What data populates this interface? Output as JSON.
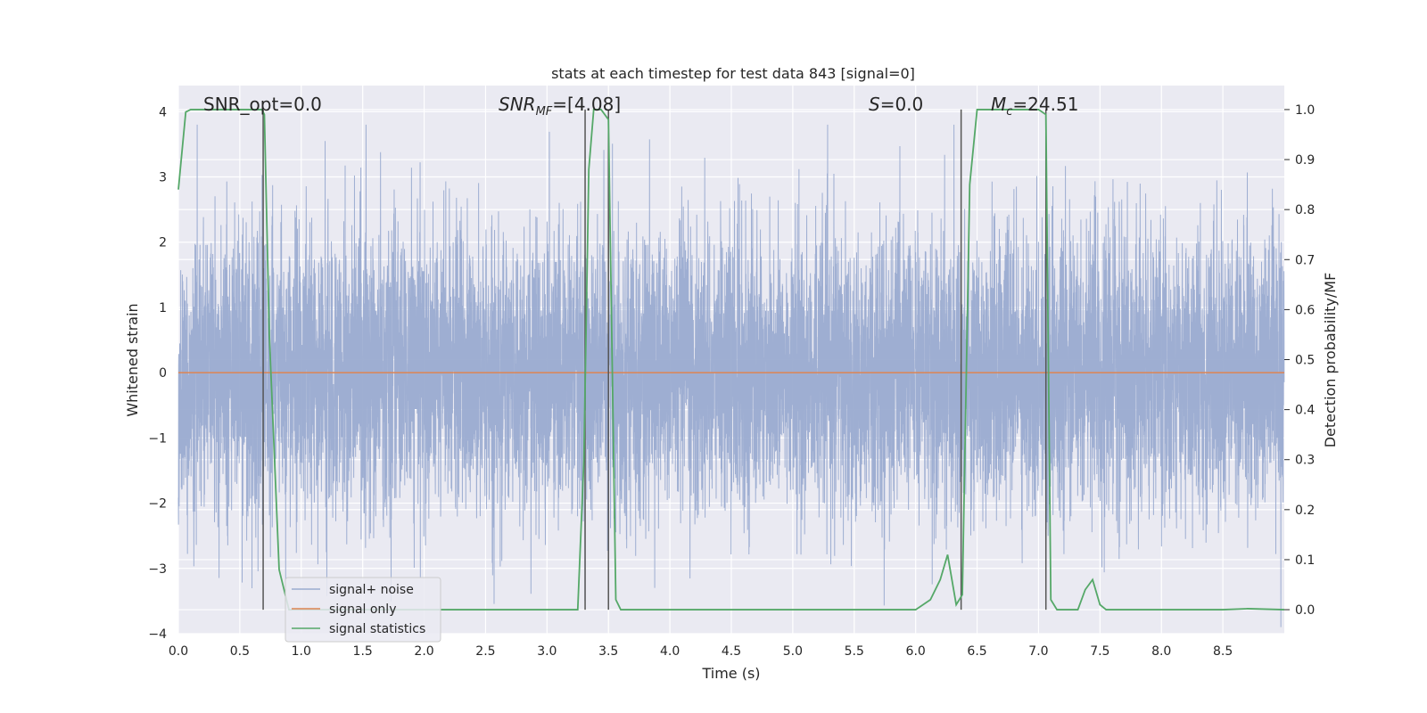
{
  "chart_data": {
    "type": "line",
    "title": "stats at each timestep for test data 843 [signal=0]",
    "xlabel": "Time (s)",
    "ylabel": "Whitened strain",
    "y2label": "Detection probability/MF",
    "xlim": [
      0,
      9
    ],
    "ylim": [
      -4,
      4.4
    ],
    "y2lim": [
      -0.048,
      1.048
    ],
    "x_ticks": [
      "0.0",
      "0.5",
      "1.0",
      "1.5",
      "2.0",
      "2.5",
      "3.0",
      "3.5",
      "4.0",
      "4.5",
      "5.0",
      "5.5",
      "6.0",
      "6.5",
      "7.0",
      "7.5",
      "8.0",
      "8.5"
    ],
    "y_ticks": [
      "4",
      "3",
      "2",
      "1",
      "0",
      "−1",
      "−2",
      "−3",
      "−4"
    ],
    "y2_ticks": [
      "1.0",
      "0.9",
      "0.8",
      "0.7",
      "0.6",
      "0.5",
      "0.4",
      "0.3",
      "0.2",
      "0.1",
      "0.0"
    ],
    "grid": true,
    "legend_position": "lower-left",
    "annotations": {
      "snr_opt": "SNR_opt=0.0",
      "snr_mf_main": "SNR",
      "snr_mf_sub": "MF",
      "snr_mf_value": "=[4.08]",
      "s_main": "S",
      "s_value": "=0.0",
      "mc_main": "M",
      "mc_sub": "c",
      "mc_value": "=24.51"
    },
    "vertical_lines": [
      0.69,
      3.31,
      3.5,
      6.37,
      7.06
    ],
    "series": [
      {
        "name": "signal+ noise",
        "color": "#9aabd0",
        "axis": "left",
        "kind": "noise",
        "range": [
          -3.9,
          3.8
        ],
        "samples": 9000
      },
      {
        "name": "signal only",
        "color": "#dd8452",
        "axis": "left",
        "x": [
          0,
          9
        ],
        "y": [
          0,
          0
        ]
      },
      {
        "name": "signal statistics",
        "color": "#55a868",
        "axis": "right",
        "x": [
          0.0,
          0.06,
          0.1,
          0.2,
          0.5,
          0.68,
          0.7,
          0.74,
          0.82,
          0.9,
          3.0,
          3.25,
          3.3,
          3.34,
          3.38,
          3.44,
          3.5,
          3.56,
          3.6,
          3.65,
          4.0,
          5.0,
          6.0,
          6.12,
          6.2,
          6.26,
          6.33,
          6.38,
          6.44,
          6.5,
          6.8,
          7.0,
          7.06,
          7.1,
          7.15,
          7.2,
          7.32,
          7.38,
          7.44,
          7.5,
          7.55,
          7.8,
          8.5,
          8.7,
          9.0
        ],
        "y": [
          0.84,
          0.995,
          1.0,
          1.0,
          1.0,
          1.0,
          0.99,
          0.55,
          0.08,
          0.0,
          0.0,
          0.0,
          0.3,
          0.88,
          1.0,
          1.0,
          0.98,
          0.02,
          0.0,
          0.0,
          0.0,
          0.0,
          0.0,
          0.02,
          0.06,
          0.11,
          0.01,
          0.03,
          0.85,
          1.0,
          1.0,
          1.0,
          0.99,
          0.02,
          0.0,
          0.0,
          0.0,
          0.04,
          0.06,
          0.01,
          0.0,
          0.0,
          0.0,
          0.002,
          0.0
        ]
      }
    ]
  }
}
